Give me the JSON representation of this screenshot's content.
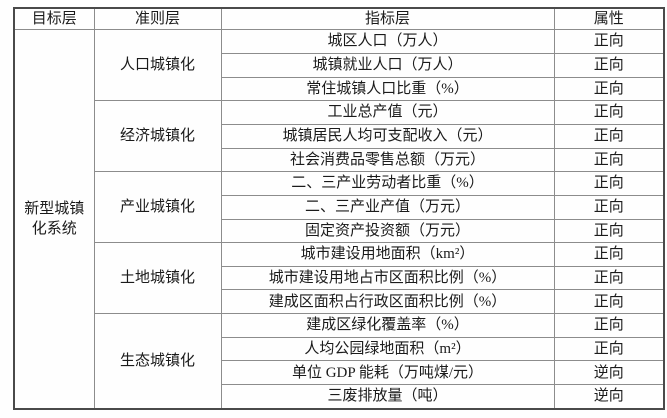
{
  "table": {
    "headers": [
      "目标层",
      "准则层",
      "指标层",
      "属性"
    ],
    "target": {
      "line1": "新型城镇",
      "line2": "化系统"
    },
    "colors": {
      "outer_border": "#4a4a4a",
      "grid_line": "#8c8c8c",
      "text": "#1b1b1b",
      "background": "#fefefe"
    },
    "groups": [
      {
        "criterion": "人口城镇化",
        "indicators": [
          {
            "name": "城区人口（万人）",
            "attr": "正向"
          },
          {
            "name": "城镇就业人口（万人）",
            "attr": "正向"
          },
          {
            "name": "常住城镇人口比重（%）",
            "attr": "正向"
          }
        ]
      },
      {
        "criterion": "经济城镇化",
        "indicators": [
          {
            "name": "工业总产值（元）",
            "attr": "正向"
          },
          {
            "name": "城镇居民人均可支配收入（元）",
            "attr": "正向"
          },
          {
            "name": "社会消费品零售总额（万元）",
            "attr": "正向"
          }
        ]
      },
      {
        "criterion": "产业城镇化",
        "indicators": [
          {
            "name": "二、三产业劳动者比重（%）",
            "attr": "正向"
          },
          {
            "name": "二、三产业产值（万元）",
            "attr": "正向"
          },
          {
            "name": "固定资产投资额（万元）",
            "attr": "正向"
          }
        ]
      },
      {
        "criterion": "土地城镇化",
        "indicators": [
          {
            "name": "城市建设用地面积（km²）",
            "attr": "正向"
          },
          {
            "name": "城市建设用地占市区面积比例（%）",
            "attr": "正向"
          },
          {
            "name": "建成区面积占行政区面积比例（%）",
            "attr": "正向"
          }
        ]
      },
      {
        "criterion": "生态城镇化",
        "indicators": [
          {
            "name": "建成区绿化覆盖率（%）",
            "attr": "正向"
          },
          {
            "name": "人均公园绿地面积（m²）",
            "attr": "正向"
          },
          {
            "name": "单位 GDP 能耗（万吨煤/元）",
            "attr": "逆向"
          },
          {
            "name": "三废排放量（吨）",
            "attr": "逆向"
          }
        ]
      }
    ]
  }
}
